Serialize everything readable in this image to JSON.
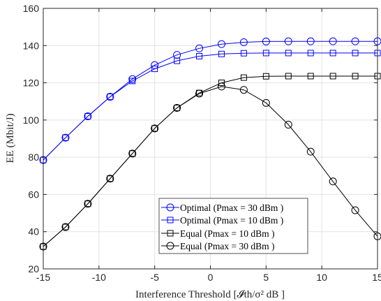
{
  "chart_data": {
    "type": "line",
    "xlabel": "Interference Threshold [𝓘th/σ² dB ]",
    "ylabel": "EE (Mbit/J)",
    "xlim": [
      -15,
      15
    ],
    "ylim": [
      20,
      160
    ],
    "xticks": [
      -15,
      -10,
      -5,
      0,
      5,
      10,
      15
    ],
    "yticks": [
      20,
      40,
      60,
      80,
      100,
      120,
      140,
      160
    ],
    "grid": true,
    "legend_position": "bottom-center",
    "x": [
      -15,
      -13,
      -11,
      -9,
      -7,
      -5,
      -3,
      -1,
      1,
      3,
      5,
      7,
      9,
      11,
      13,
      15
    ],
    "series": [
      {
        "name": "Optimal (Pmax = 30 dBm )",
        "color": "#0000ff",
        "marker": "circle",
        "values": [
          78.5,
          90.5,
          102,
          112.5,
          122,
          129.5,
          135,
          138.5,
          140.8,
          141.8,
          142.2,
          142.3,
          142.3,
          142.3,
          142.3,
          142.3
        ]
      },
      {
        "name": "Optimal (Pmax = 10 dBm )",
        "color": "#0000ff",
        "marker": "square",
        "values": [
          78.5,
          90.5,
          102,
          112.5,
          121,
          127.5,
          131.8,
          134.3,
          135.5,
          135.9,
          136,
          136,
          136,
          136,
          136,
          136
        ]
      },
      {
        "name": "Equal (Pmax = 10 dBm )",
        "color": "#000000",
        "marker": "square",
        "values": [
          32,
          42.5,
          55,
          68.5,
          82,
          95.5,
          106.5,
          114.5,
          120,
          122.8,
          123.5,
          123.6,
          123.6,
          123.6,
          123.6,
          123.6
        ]
      },
      {
        "name": "Equal (Pmax = 30 dBm )",
        "color": "#000000",
        "marker": "circle",
        "values": [
          32,
          42.5,
          55,
          68.5,
          82,
          95.5,
          106.5,
          114.2,
          118,
          116.2,
          109.2,
          97.5,
          83,
          67,
          51.5,
          37.5
        ]
      }
    ]
  }
}
